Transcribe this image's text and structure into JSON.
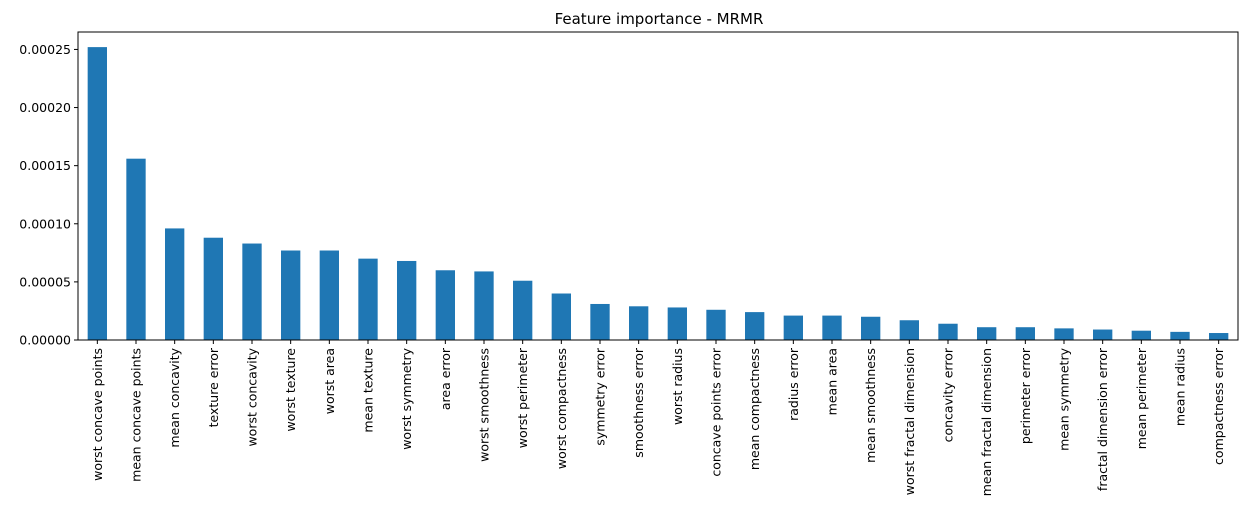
{
  "chart_data": {
    "type": "bar",
    "title": "Feature importance - MRMR",
    "xlabel": "",
    "ylabel": "",
    "ylim": [
      0,
      0.000265
    ],
    "yticks": [
      "0.00000",
      "0.00005",
      "0.00010",
      "0.00015",
      "0.00020",
      "0.00025"
    ],
    "ytick_values": [
      0,
      5e-05,
      0.0001,
      0.00015,
      0.0002,
      0.00025
    ],
    "grid": false,
    "legend": "none",
    "bar_color": "#1f77b4",
    "categories": [
      "worst concave points",
      "mean concave points",
      "mean concavity",
      "texture error",
      "worst concavity",
      "worst texture",
      "worst area",
      "mean texture",
      "worst symmetry",
      "area error",
      "worst smoothness",
      "worst perimeter",
      "worst compactness",
      "symmetry error",
      "smoothness error",
      "worst radius",
      "concave points error",
      "mean compactness",
      "radius error",
      "mean area",
      "mean smoothness",
      "worst fractal dimension",
      "concavity error",
      "mean fractal dimension",
      "perimeter error",
      "mean symmetry",
      "fractal dimension error",
      "mean perimeter",
      "mean radius",
      "compactness error"
    ],
    "values": [
      0.000252,
      0.000156,
      9.6e-05,
      8.8e-05,
      8.3e-05,
      7.7e-05,
      7.7e-05,
      7e-05,
      6.8e-05,
      6e-05,
      5.9e-05,
      5.1e-05,
      4e-05,
      3.1e-05,
      2.9e-05,
      2.8e-05,
      2.6e-05,
      2.4e-05,
      2.1e-05,
      2.1e-05,
      2e-05,
      1.7e-05,
      1.4e-05,
      1.1e-05,
      1.1e-05,
      1e-05,
      9e-06,
      8e-06,
      7e-06,
      6e-06
    ]
  }
}
